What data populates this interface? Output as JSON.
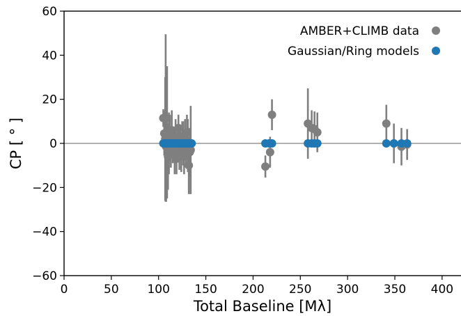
{
  "chart_data": {
    "type": "scatter",
    "xlabel": "Total Baseline [Mλ]",
    "ylabel": "CP [ ° ]",
    "xlim": [
      0,
      420
    ],
    "ylim": [
      -60,
      60
    ],
    "xticks": [
      0,
      50,
      100,
      150,
      200,
      250,
      300,
      350,
      400
    ],
    "yticks": [
      -60,
      -40,
      -20,
      0,
      20,
      40,
      60
    ],
    "xtick_labels": [
      "0",
      "50",
      "100",
      "150",
      "200",
      "250",
      "300",
      "350",
      "400"
    ],
    "ytick_labels": [
      "−60",
      "−40",
      "−20",
      "0",
      "20",
      "40",
      "60"
    ],
    "reference_line": {
      "y": 0,
      "color": "#b0b0b0"
    },
    "legend_placement": "top-right",
    "series": [
      {
        "name": "AMBER+CLIMB data",
        "color": "#7f7f7f",
        "points": [
          {
            "x": 105,
            "y": 11.5,
            "err": 4
          },
          {
            "x": 106,
            "y": 4.5,
            "err": 10
          },
          {
            "x": 107,
            "y": 2,
            "err": 28
          },
          {
            "x": 107.5,
            "y": 11.5,
            "err": 38
          },
          {
            "x": 108,
            "y": -1.5,
            "err": 25
          },
          {
            "x": 109,
            "y": 5,
            "err": 30
          },
          {
            "x": 110,
            "y": -6,
            "err": 15
          },
          {
            "x": 111,
            "y": 0,
            "err": 14
          },
          {
            "x": 112,
            "y": 3,
            "err": 10
          },
          {
            "x": 113,
            "y": -3,
            "err": 8
          },
          {
            "x": 114,
            "y": 6,
            "err": 9
          },
          {
            "x": 115,
            "y": -2,
            "err": 7
          },
          {
            "x": 116,
            "y": 1,
            "err": 6
          },
          {
            "x": 117,
            "y": -5,
            "err": 9
          },
          {
            "x": 118,
            "y": 3,
            "err": 8
          },
          {
            "x": 119,
            "y": -7,
            "err": 7
          },
          {
            "x": 120,
            "y": 2,
            "err": 6
          },
          {
            "x": 121,
            "y": 7,
            "err": 6
          },
          {
            "x": 122,
            "y": -2,
            "err": 10
          },
          {
            "x": 123,
            "y": 1,
            "err": 7
          },
          {
            "x": 124,
            "y": -4,
            "err": 9
          },
          {
            "x": 125,
            "y": 3,
            "err": 7
          },
          {
            "x": 126,
            "y": 0,
            "err": 10
          },
          {
            "x": 127,
            "y": -6,
            "err": 8
          },
          {
            "x": 128,
            "y": 2,
            "err": 9
          },
          {
            "x": 129,
            "y": -3,
            "err": 7
          },
          {
            "x": 130,
            "y": 5,
            "err": 8
          },
          {
            "x": 131,
            "y": -1,
            "err": 12
          },
          {
            "x": 132,
            "y": -10,
            "err": 13
          },
          {
            "x": 133,
            "y": -4,
            "err": 11
          },
          {
            "x": 134,
            "y": -3,
            "err": 20
          },
          {
            "x": 213,
            "y": -10.5,
            "err": 5
          },
          {
            "x": 218,
            "y": -4,
            "err": 7
          },
          {
            "x": 220,
            "y": 13,
            "err": 7
          },
          {
            "x": 258,
            "y": 9,
            "err": 16
          },
          {
            "x": 262,
            "y": 7,
            "err": 8
          },
          {
            "x": 265,
            "y": 6.5,
            "err": 8
          },
          {
            "x": 268,
            "y": 5,
            "err": 9
          },
          {
            "x": 341,
            "y": 9,
            "err": 8.5
          },
          {
            "x": 349,
            "y": 0,
            "err": 9
          },
          {
            "x": 357,
            "y": -1.5,
            "err": 8.5
          },
          {
            "x": 363,
            "y": -0.5,
            "err": 7
          }
        ]
      },
      {
        "name": "Gaussian/Ring models",
        "color": "#1f77b4",
        "points": [
          {
            "x": 105,
            "y": 0
          },
          {
            "x": 107,
            "y": 0
          },
          {
            "x": 109,
            "y": 0
          },
          {
            "x": 111,
            "y": 0
          },
          {
            "x": 113,
            "y": 0
          },
          {
            "x": 115,
            "y": 0
          },
          {
            "x": 117,
            "y": 0
          },
          {
            "x": 119,
            "y": 0
          },
          {
            "x": 121,
            "y": 0
          },
          {
            "x": 123,
            "y": 0
          },
          {
            "x": 125,
            "y": 0
          },
          {
            "x": 127,
            "y": 0
          },
          {
            "x": 129,
            "y": 0
          },
          {
            "x": 131,
            "y": 0
          },
          {
            "x": 133,
            "y": 0
          },
          {
            "x": 135,
            "y": 0
          },
          {
            "x": 213,
            "y": 0
          },
          {
            "x": 217,
            "y": 0
          },
          {
            "x": 220,
            "y": 0
          },
          {
            "x": 258,
            "y": 0
          },
          {
            "x": 262,
            "y": 0
          },
          {
            "x": 265,
            "y": 0
          },
          {
            "x": 268,
            "y": 0
          },
          {
            "x": 341,
            "y": 0
          },
          {
            "x": 349,
            "y": 0
          },
          {
            "x": 357,
            "y": 0
          },
          {
            "x": 363,
            "y": 0
          }
        ]
      }
    ]
  }
}
